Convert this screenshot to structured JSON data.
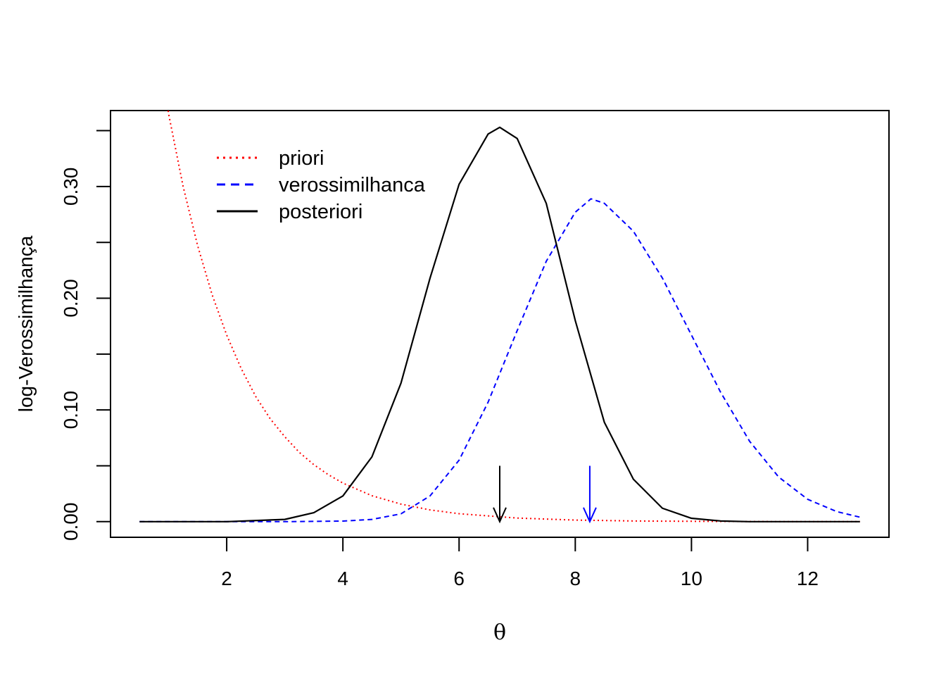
{
  "chart_data": {
    "type": "line",
    "title": "",
    "xlabel": "θ",
    "ylabel": "log-Verossimilhança",
    "xlim": [
      0,
      13.4
    ],
    "ylim": [
      -0.014,
      0.368
    ],
    "x_ticks": [
      2,
      4,
      6,
      8,
      10,
      12
    ],
    "y_ticks": [
      0.0,
      0.05,
      0.1,
      0.15,
      0.2,
      0.25,
      0.3,
      0.35
    ],
    "y_tick_labels": [
      {
        "value": 0.0,
        "label": "0.00"
      },
      {
        "value": 0.1,
        "label": "0.10"
      },
      {
        "value": 0.2,
        "label": "0.20"
      },
      {
        "value": 0.3,
        "label": "0.30"
      }
    ],
    "legend_position": "top-left",
    "series": [
      {
        "name": "priori",
        "color": "#ff0000",
        "style": "dotted",
        "x": [
          0.5,
          1.0,
          1.25,
          1.5,
          1.75,
          2.0,
          2.25,
          2.5,
          2.75,
          3.0,
          3.25,
          3.5,
          3.75,
          4.0,
          4.5,
          5.0,
          5.5,
          6.0,
          7.0,
          8.0,
          9.0,
          10.0,
          11.0,
          12.0,
          12.9
        ],
        "y": [
          0.54,
          0.365,
          0.3,
          0.247,
          0.203,
          0.167,
          0.137,
          0.112,
          0.092,
          0.076,
          0.062,
          0.051,
          0.042,
          0.0345,
          0.0232,
          0.0157,
          0.0105,
          0.0071,
          0.0032,
          0.0014,
          0.0006,
          0.0003,
          0.0001,
          0.0,
          0.0
        ]
      },
      {
        "name": "verossimilhanca",
        "color": "#0000ff",
        "style": "dashed",
        "x": [
          0.5,
          3.0,
          4.0,
          4.5,
          5.0,
          5.5,
          6.0,
          6.5,
          7.0,
          7.5,
          8.0,
          8.27,
          8.5,
          9.0,
          9.5,
          10.0,
          10.5,
          11.0,
          11.5,
          12.0,
          12.5,
          12.9
        ],
        "y": [
          0.0,
          0.0,
          0.0005,
          0.002,
          0.007,
          0.023,
          0.055,
          0.107,
          0.171,
          0.233,
          0.277,
          0.289,
          0.285,
          0.26,
          0.218,
          0.167,
          0.116,
          0.072,
          0.04,
          0.02,
          0.009,
          0.004
        ]
      },
      {
        "name": "posteriori",
        "color": "#000000",
        "style": "solid",
        "x": [
          0.5,
          2.0,
          3.0,
          3.5,
          4.0,
          4.5,
          5.0,
          5.5,
          6.0,
          6.5,
          6.7,
          7.0,
          7.5,
          8.0,
          8.5,
          9.0,
          9.5,
          10.0,
          10.5,
          11.0,
          12.0,
          12.9
        ],
        "y": [
          0.0,
          0.0,
          0.002,
          0.008,
          0.023,
          0.058,
          0.124,
          0.218,
          0.302,
          0.347,
          0.353,
          0.343,
          0.285,
          0.18,
          0.089,
          0.038,
          0.012,
          0.003,
          0.0006,
          0.0,
          0.0,
          0.0
        ]
      }
    ],
    "annotations": [
      {
        "type": "arrow",
        "x": 6.7,
        "y_from": 0.05,
        "y_to": 0.0,
        "color": "#000000"
      },
      {
        "type": "arrow",
        "x": 8.25,
        "y_from": 0.05,
        "y_to": 0.0,
        "color": "#0000ff"
      }
    ]
  }
}
